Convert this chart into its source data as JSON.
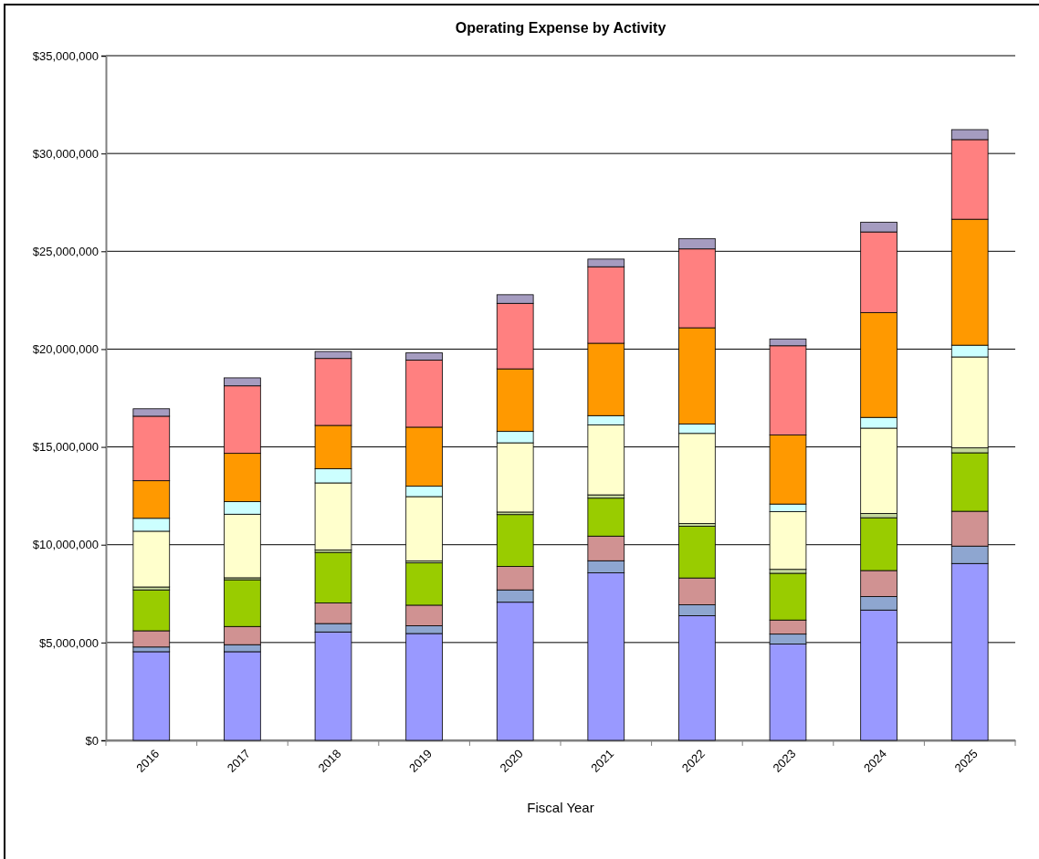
{
  "chart_data": {
    "type": "bar",
    "title": "Operating Expense by Activity",
    "xlabel": "Fiscal Year",
    "stacked": true,
    "grid": "y",
    "legend": false,
    "categories": [
      "2016",
      "2017",
      "2018",
      "2019",
      "2020",
      "2021",
      "2022",
      "2023",
      "2024",
      "2025"
    ],
    "ylim": [
      0,
      35000000
    ],
    "yticks": [
      {
        "value": 0,
        "label": "$0"
      },
      {
        "value": 5000000,
        "label": "$5,000,000"
      },
      {
        "value": 10000000,
        "label": "$10,000,000"
      },
      {
        "value": 15000000,
        "label": "$15,000,000"
      },
      {
        "value": 20000000,
        "label": "$20,000,000"
      },
      {
        "value": 25000000,
        "label": "$25,000,000"
      },
      {
        "value": 30000000,
        "label": "$30,000,000"
      },
      {
        "value": 35000000,
        "label": "$35,000,000"
      }
    ],
    "series": [
      {
        "color": "#9999ff",
        "values": [
          4530000,
          4530000,
          5540000,
          5460000,
          7060000,
          8560000,
          6370000,
          4920000,
          6660000,
          9040000
        ]
      },
      {
        "color": "#8ea6d0",
        "values": [
          240000,
          360000,
          430000,
          400000,
          630000,
          620000,
          560000,
          510000,
          690000,
          890000
        ]
      },
      {
        "color": "#d09292",
        "values": [
          830000,
          930000,
          1050000,
          1050000,
          1200000,
          1260000,
          1370000,
          720000,
          1330000,
          1780000
        ]
      },
      {
        "color": "#99cc00",
        "values": [
          2090000,
          2390000,
          2590000,
          2160000,
          2650000,
          1940000,
          2640000,
          2390000,
          2700000,
          2990000
        ]
      },
      {
        "color": "#c4d79b",
        "values": [
          150000,
          100000,
          120000,
          100000,
          130000,
          170000,
          140000,
          200000,
          220000,
          250000
        ]
      },
      {
        "color": "#ffffcc",
        "values": [
          2850000,
          3250000,
          3430000,
          3290000,
          3540000,
          3570000,
          4610000,
          2950000,
          4360000,
          4650000
        ]
      },
      {
        "color": "#ccffff",
        "values": [
          660000,
          640000,
          730000,
          530000,
          580000,
          480000,
          480000,
          390000,
          550000,
          600000
        ]
      },
      {
        "color": "#ff9900",
        "values": [
          1920000,
          2470000,
          2210000,
          3020000,
          3200000,
          3700000,
          4920000,
          3530000,
          5360000,
          6440000
        ]
      },
      {
        "color": "#ff8080",
        "values": [
          3300000,
          3450000,
          3420000,
          3430000,
          3350000,
          3910000,
          4030000,
          4560000,
          4120000,
          4070000
        ]
      },
      {
        "color": "#a59cc0",
        "values": [
          380000,
          410000,
          360000,
          370000,
          440000,
          390000,
          530000,
          350000,
          500000,
          510000
        ]
      }
    ]
  }
}
